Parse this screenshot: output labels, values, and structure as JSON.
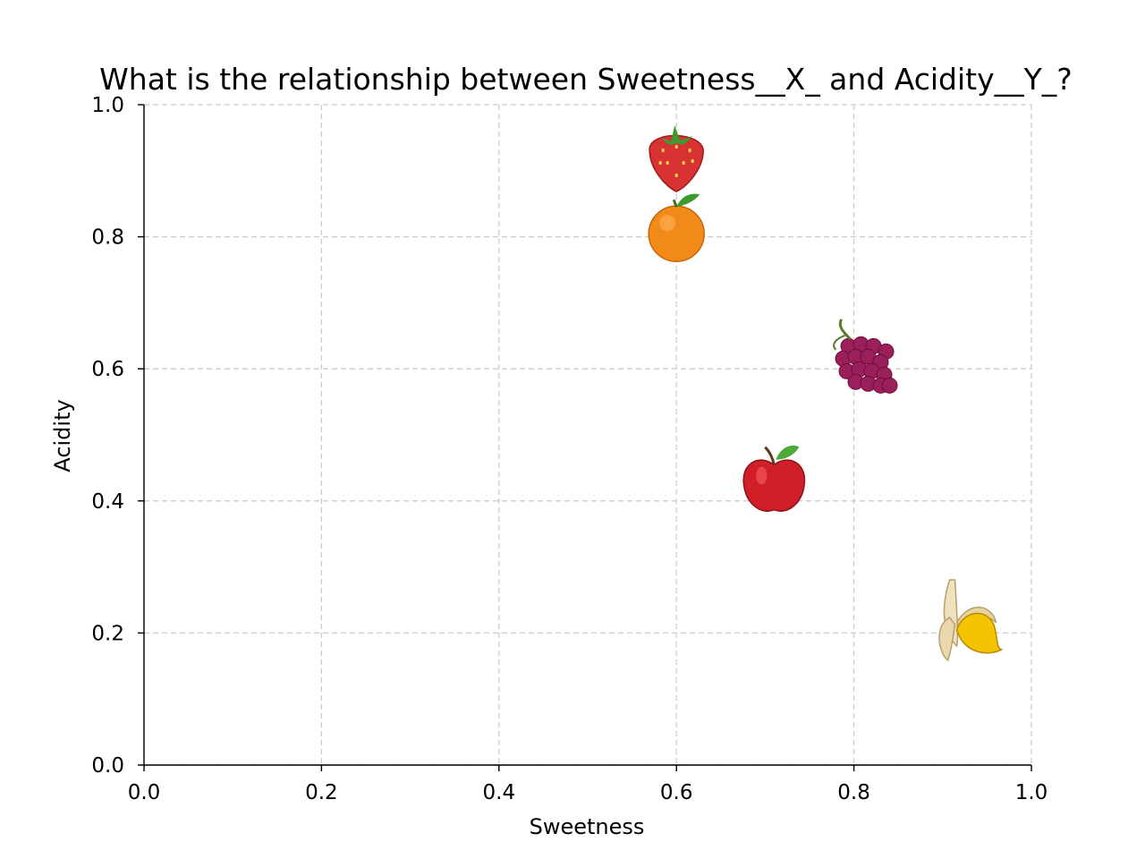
{
  "chart_data": {
    "type": "scatter",
    "title": "What is the relationship between Sweetness__X_ and Acidity__Y_?",
    "xlabel": "Sweetness",
    "ylabel": "Acidity",
    "xlim": [
      0.0,
      1.0
    ],
    "ylim": [
      0.0,
      1.0
    ],
    "xticks": [
      "0.0",
      "0.2",
      "0.4",
      "0.6",
      "0.8",
      "1.0"
    ],
    "yticks": [
      "0.0",
      "0.2",
      "0.4",
      "0.6",
      "0.8",
      "1.0"
    ],
    "grid": true,
    "marker": "fruit-emoji",
    "points": [
      {
        "icon": "strawberry-icon",
        "glyph": "🍓",
        "color": "#d93232",
        "x": 0.6,
        "y": 0.92
      },
      {
        "icon": "orange-icon",
        "glyph": "🍊",
        "color": "#f28a1a",
        "x": 0.6,
        "y": 0.81
      },
      {
        "icon": "grapes-icon",
        "glyph": "🍇",
        "color": "#9b1f5a",
        "x": 0.81,
        "y": 0.61
      },
      {
        "icon": "apple-icon",
        "glyph": "🍎",
        "color": "#d11f2a",
        "x": 0.71,
        "y": 0.43
      },
      {
        "icon": "banana-icon",
        "glyph": "🍌",
        "color": "#f5c400",
        "x": 0.93,
        "y": 0.21
      }
    ]
  }
}
